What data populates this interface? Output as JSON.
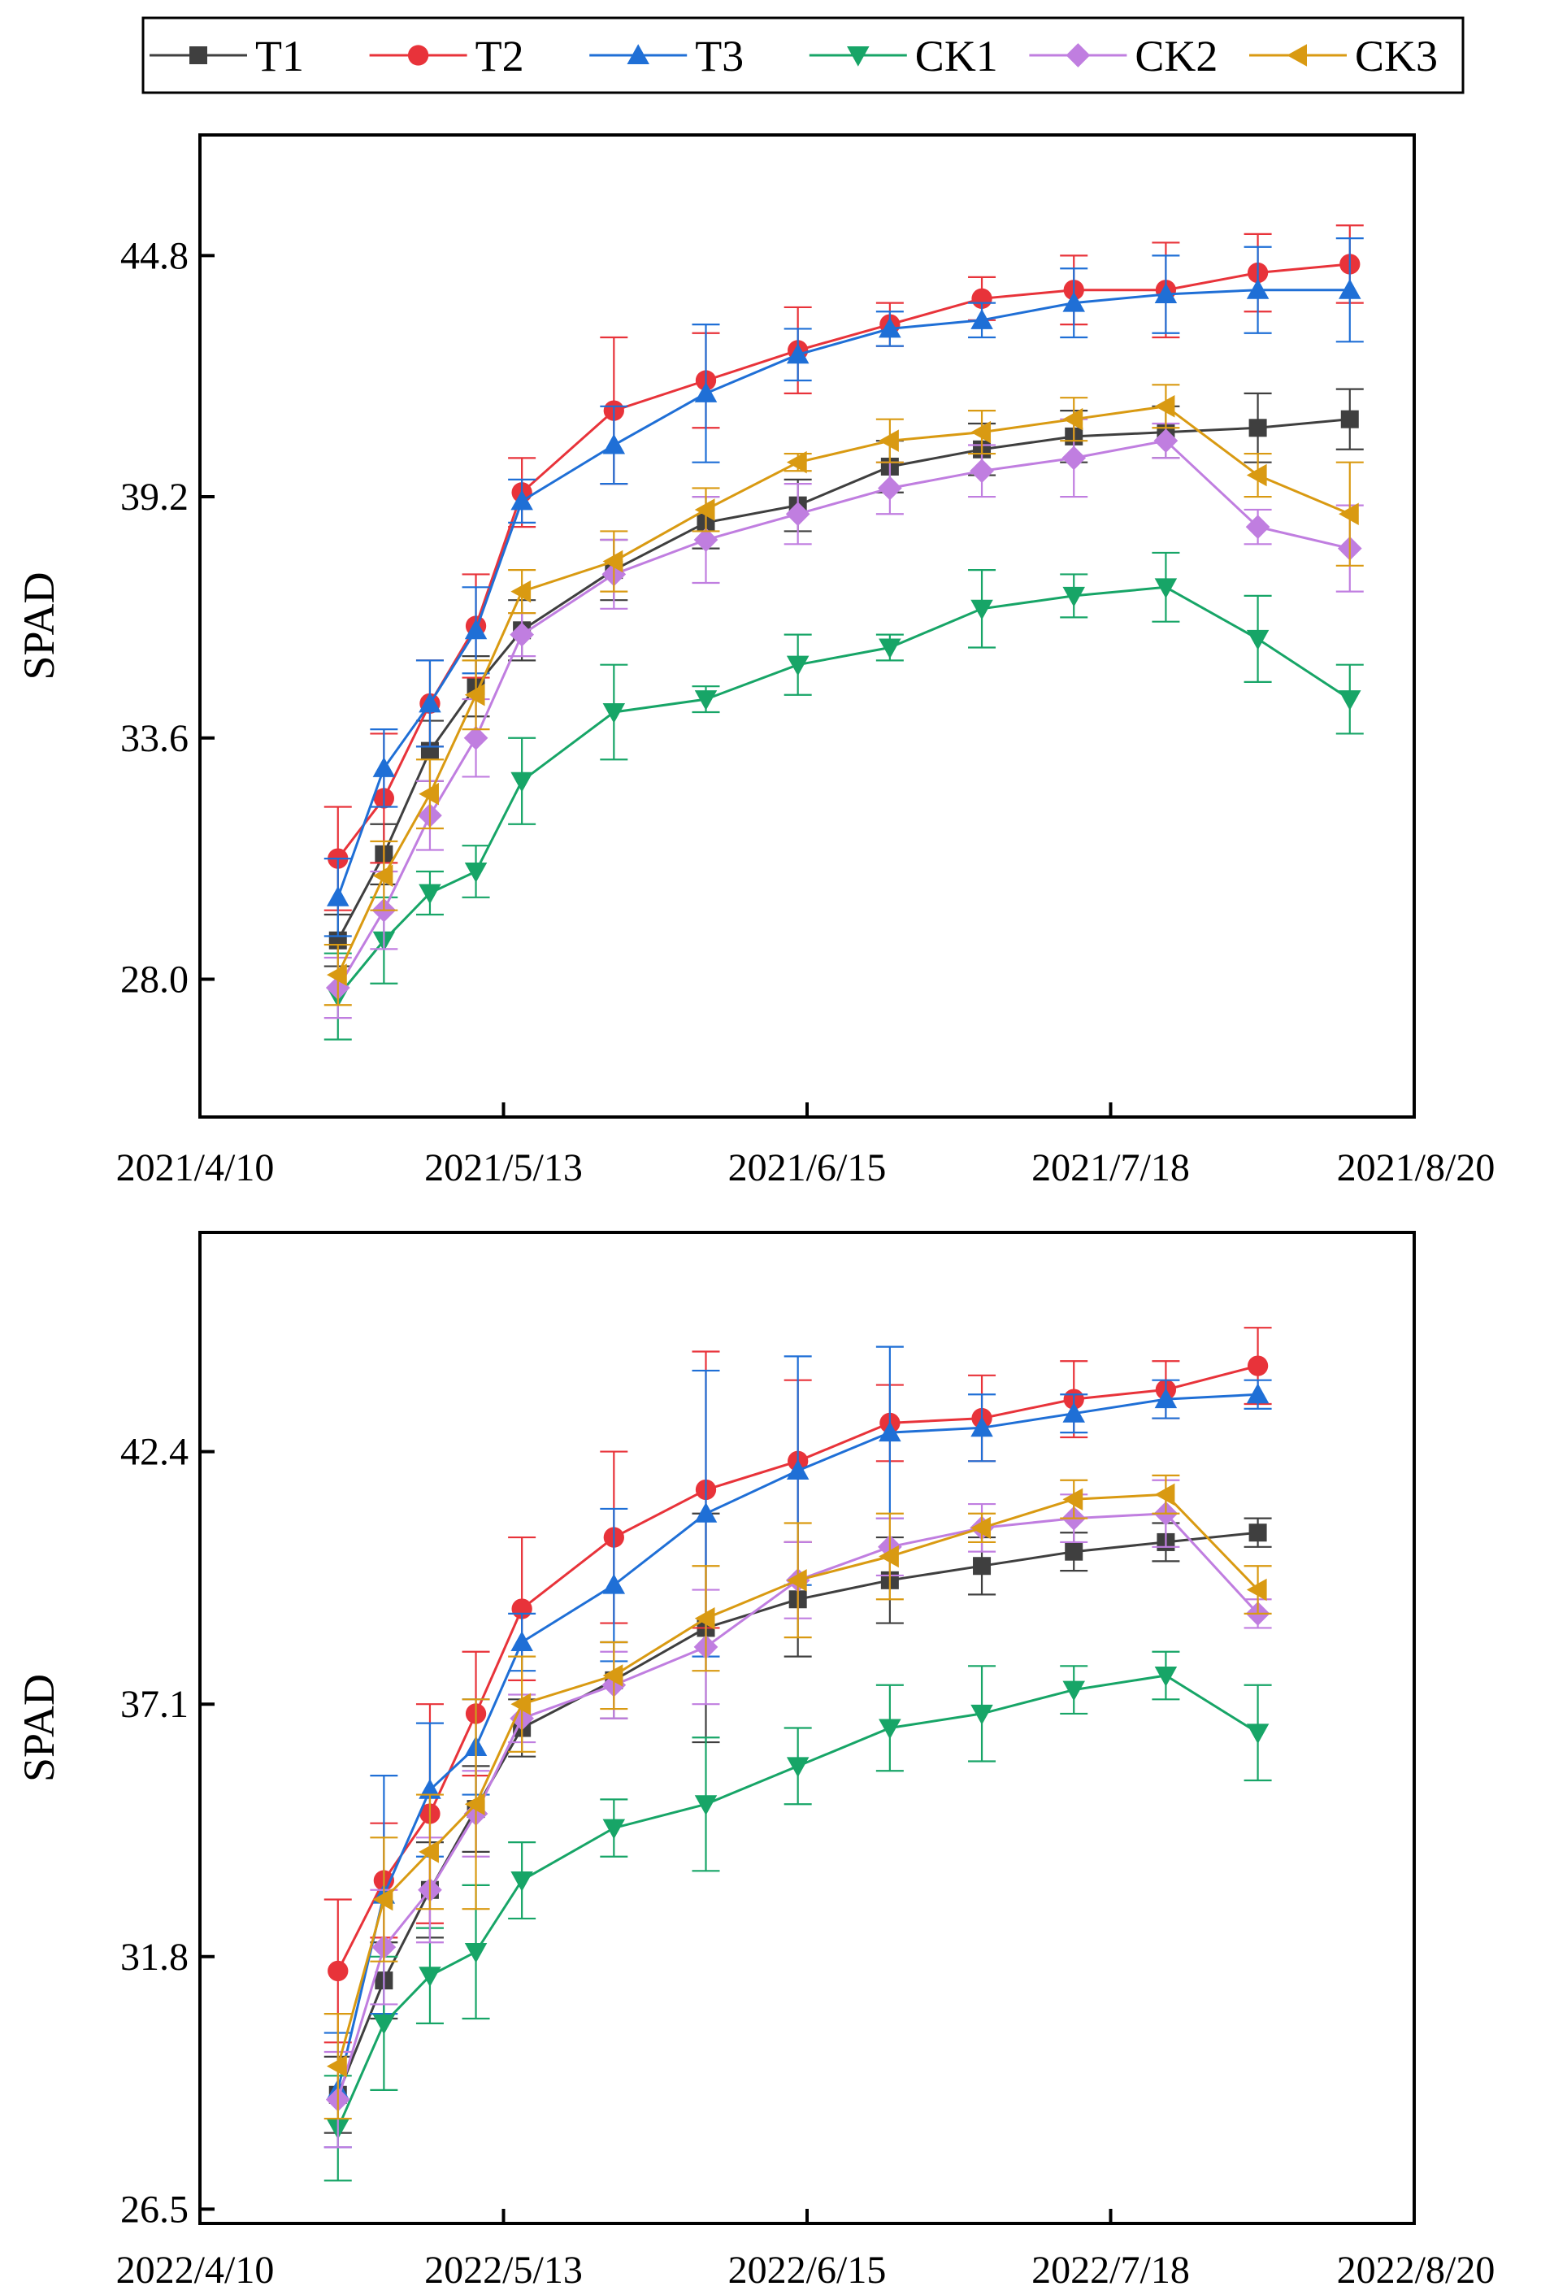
{
  "legend": [
    {
      "name": "T1",
      "color": "#3f3f3f",
      "marker": "square"
    },
    {
      "name": "T2",
      "color": "#e8333a",
      "marker": "circle"
    },
    {
      "name": "T3",
      "color": "#1f6fd6",
      "marker": "triangle-up"
    },
    {
      "name": "CK1",
      "color": "#17a567",
      "marker": "triangle-down"
    },
    {
      "name": "CK2",
      "color": "#c07ee0",
      "marker": "diamond"
    },
    {
      "name": "CK3",
      "color": "#d99a12",
      "marker": "triangle-left"
    }
  ],
  "chart_data": [
    {
      "type": "line",
      "ylabel": "SPAD",
      "xlabel": "",
      "x_tick_labels": [
        "2021/4/10",
        "2021/5/13",
        "2021/6/15",
        "2021/7/18",
        "2021/8/20"
      ],
      "x_tick_days": [
        0,
        33,
        66,
        99,
        132
      ],
      "y_ticks": [
        28.0,
        33.6,
        39.2,
        44.8
      ],
      "y_tick_labels": [
        "28.0",
        "33.6",
        "39.2",
        "44.8"
      ],
      "xlim": [
        0,
        132
      ],
      "ylim": [
        24.8,
        47.6
      ],
      "x_days": [
        15,
        20,
        25,
        30,
        35,
        45,
        55,
        65,
        75,
        85,
        95,
        105,
        115,
        125
      ],
      "series": [
        {
          "name": "T1",
          "values": [
            28.9,
            30.9,
            33.3,
            34.8,
            36.1,
            37.5,
            38.6,
            39.0,
            39.9,
            40.3,
            40.6,
            40.7,
            40.8,
            41.0
          ],
          "errors": [
            0.6,
            0.7,
            0.7,
            0.7,
            0.7,
            0.7,
            0.6,
            0.6,
            0.6,
            0.6,
            0.6,
            0.6,
            0.8,
            0.7
          ]
        },
        {
          "name": "T2",
          "values": [
            30.8,
            32.2,
            34.4,
            36.2,
            39.3,
            41.2,
            41.9,
            42.6,
            43.2,
            43.8,
            44.0,
            44.0,
            44.4,
            44.6
          ],
          "errors": [
            1.2,
            1.5,
            1.0,
            1.2,
            0.8,
            1.7,
            1.1,
            1.0,
            0.5,
            0.5,
            0.8,
            1.1,
            0.9,
            0.9
          ]
        },
        {
          "name": "T3",
          "values": [
            29.9,
            32.9,
            34.4,
            36.1,
            39.1,
            40.4,
            41.6,
            42.5,
            43.1,
            43.3,
            43.7,
            43.9,
            44.0,
            44.0
          ],
          "errors": [
            0.9,
            0.9,
            1.0,
            1.0,
            0.5,
            0.9,
            1.6,
            0.6,
            0.4,
            0.4,
            0.8,
            0.9,
            1.0,
            1.2
          ]
        },
        {
          "name": "CK1",
          "values": [
            27.6,
            28.9,
            30.0,
            30.5,
            32.6,
            34.2,
            34.5,
            35.3,
            35.7,
            36.6,
            36.9,
            37.1,
            35.9,
            34.5
          ],
          "errors": [
            1.0,
            1.0,
            0.5,
            0.6,
            1.0,
            1.1,
            0.3,
            0.7,
            0.3,
            0.9,
            0.5,
            0.8,
            1.0,
            0.8
          ]
        },
        {
          "name": "CK2",
          "values": [
            27.8,
            29.6,
            31.8,
            33.6,
            36.0,
            37.4,
            38.2,
            38.8,
            39.4,
            39.8,
            40.1,
            40.5,
            38.5,
            38.0
          ],
          "errors": [
            0.7,
            0.9,
            0.8,
            0.9,
            0.5,
            0.8,
            1.0,
            0.7,
            0.6,
            0.6,
            0.9,
            0.4,
            0.4,
            1.0
          ]
        },
        {
          "name": "CK3",
          "values": [
            28.1,
            30.4,
            32.3,
            34.6,
            37.0,
            37.7,
            38.9,
            40.0,
            40.5,
            40.7,
            41.0,
            41.3,
            39.7,
            38.8
          ],
          "errors": [
            0.7,
            0.8,
            0.8,
            0.8,
            0.5,
            0.7,
            0.5,
            0.2,
            0.5,
            0.5,
            0.5,
            0.5,
            0.5,
            1.2
          ]
        }
      ]
    },
    {
      "type": "line",
      "ylabel": "SPAD",
      "xlabel": "",
      "x_tick_labels": [
        "2022/4/10",
        "2022/5/13",
        "2022/6/15",
        "2022/7/18",
        "2022/8/20"
      ],
      "x_tick_days": [
        0,
        33,
        66,
        99,
        132
      ],
      "y_ticks": [
        26.5,
        31.8,
        37.1,
        42.4
      ],
      "y_tick_labels": [
        "26.5",
        "31.8",
        "37.1",
        "42.4"
      ],
      "xlim": [
        0,
        132
      ],
      "ylim": [
        26.2,
        47.0
      ],
      "x_days": [
        15,
        20,
        25,
        30,
        35,
        45,
        55,
        65,
        75,
        85,
        95,
        105,
        115
      ],
      "series": [
        {
          "name": "T1",
          "values": [
            28.9,
            31.3,
            33.2,
            34.9,
            36.6,
            37.6,
            38.7,
            39.3,
            39.7,
            40.0,
            40.3,
            40.5,
            40.7
          ],
          "errors": [
            0.8,
            0.8,
            1.0,
            0.9,
            0.6,
            0.8,
            2.4,
            1.2,
            0.9,
            0.6,
            0.4,
            0.4,
            0.3
          ]
        },
        {
          "name": "T2",
          "values": [
            31.5,
            33.4,
            34.8,
            36.9,
            39.1,
            40.6,
            41.6,
            42.2,
            43.0,
            43.1,
            43.5,
            43.7,
            44.2
          ],
          "errors": [
            1.5,
            1.2,
            2.3,
            1.3,
            1.5,
            1.8,
            2.9,
            1.7,
            0.8,
            0.9,
            0.8,
            0.6,
            0.8
          ]
        },
        {
          "name": "T3",
          "values": [
            29.0,
            33.1,
            35.3,
            36.2,
            38.4,
            39.6,
            41.1,
            42.0,
            42.8,
            42.9,
            43.2,
            43.5,
            43.6
          ],
          "errors": [
            1.2,
            2.5,
            1.4,
            1.0,
            0.6,
            1.6,
            3.0,
            2.4,
            1.8,
            0.7,
            0.4,
            0.4,
            0.3
          ]
        },
        {
          "name": "CK1",
          "values": [
            28.2,
            30.4,
            31.4,
            31.9,
            33.4,
            34.5,
            35.0,
            35.8,
            36.6,
            36.9,
            37.4,
            37.7,
            36.5
          ],
          "errors": [
            1.1,
            1.4,
            1.0,
            1.4,
            0.8,
            0.6,
            1.4,
            0.8,
            0.9,
            1.0,
            0.5,
            0.5,
            1.0
          ]
        },
        {
          "name": "CK2",
          "values": [
            28.8,
            32.0,
            33.2,
            34.8,
            36.8,
            37.5,
            38.3,
            39.7,
            40.4,
            40.8,
            41.0,
            41.1,
            39.0
          ],
          "errors": [
            1.0,
            1.2,
            1.1,
            0.9,
            0.5,
            0.7,
            1.2,
            0.8,
            0.6,
            0.5,
            0.5,
            0.7,
            0.3
          ]
        },
        {
          "name": "CK3",
          "values": [
            29.5,
            33.0,
            34.0,
            35.0,
            37.1,
            37.7,
            38.9,
            39.7,
            40.2,
            40.8,
            41.4,
            41.5,
            39.5
          ],
          "errors": [
            1.1,
            1.3,
            1.2,
            2.2,
            1.0,
            0.7,
            1.1,
            1.2,
            0.9,
            0.3,
            0.4,
            0.4,
            0.5
          ]
        }
      ]
    }
  ]
}
